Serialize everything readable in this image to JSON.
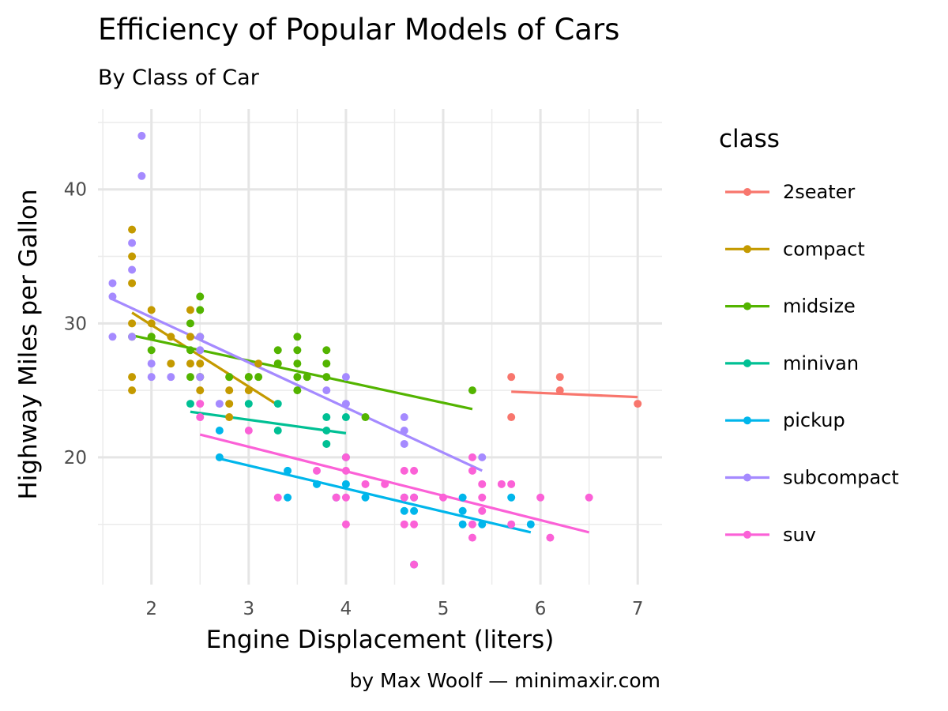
{
  "chart_data": {
    "type": "scatter",
    "title": "Efficiency of Popular Models of Cars",
    "subtitle": "By Class of Car",
    "xlabel": "Engine Displacement (liters)",
    "ylabel": "Highway Miles per Gallon",
    "caption": "by Max Woolf — minimaxir.com",
    "xlim": [
      1.45,
      7.25
    ],
    "ylim": [
      10.5,
      46.0
    ],
    "xticks": [
      2,
      3,
      4,
      5,
      6,
      7
    ],
    "yticks": [
      20,
      30,
      40
    ],
    "grid": true,
    "legend": {
      "title": "class",
      "position": "right"
    },
    "series": [
      {
        "name": "2seater",
        "color": "#F8766D",
        "points": [
          [
            5.7,
            26
          ],
          [
            5.7,
            23
          ],
          [
            6.2,
            26
          ],
          [
            6.2,
            25
          ],
          [
            7.0,
            24
          ]
        ],
        "fit": [
          [
            5.7,
            24.9
          ],
          [
            7.0,
            24.5
          ]
        ]
      },
      {
        "name": "compact",
        "color": "#C49A00",
        "points": [
          [
            1.8,
            37
          ],
          [
            1.8,
            35
          ],
          [
            1.8,
            33
          ],
          [
            1.8,
            30
          ],
          [
            1.8,
            26
          ],
          [
            1.8,
            25
          ],
          [
            2.0,
            31
          ],
          [
            2.0,
            30
          ],
          [
            2.0,
            29
          ],
          [
            2.2,
            29
          ],
          [
            2.2,
            27
          ],
          [
            2.4,
            31
          ],
          [
            2.4,
            29
          ],
          [
            2.4,
            27
          ],
          [
            2.5,
            27
          ],
          [
            2.5,
            26
          ],
          [
            2.5,
            25
          ],
          [
            2.8,
            26
          ],
          [
            2.8,
            25
          ],
          [
            2.8,
            24
          ],
          [
            2.8,
            23
          ],
          [
            3.0,
            26
          ],
          [
            3.0,
            25
          ],
          [
            3.1,
            27
          ],
          [
            3.3,
            27
          ]
        ],
        "fit": [
          [
            1.8,
            30.8
          ],
          [
            3.3,
            23.9
          ]
        ]
      },
      {
        "name": "midsize",
        "color": "#53B400",
        "points": [
          [
            1.8,
            29
          ],
          [
            2.0,
            29
          ],
          [
            2.0,
            28
          ],
          [
            2.4,
            30
          ],
          [
            2.4,
            28
          ],
          [
            2.4,
            26
          ],
          [
            2.5,
            32
          ],
          [
            2.5,
            31
          ],
          [
            2.5,
            29
          ],
          [
            2.5,
            26
          ],
          [
            2.8,
            26
          ],
          [
            3.0,
            26
          ],
          [
            3.1,
            26
          ],
          [
            3.3,
            28
          ],
          [
            3.3,
            27
          ],
          [
            3.5,
            29
          ],
          [
            3.5,
            28
          ],
          [
            3.5,
            27
          ],
          [
            3.5,
            26
          ],
          [
            3.5,
            25
          ],
          [
            3.6,
            26
          ],
          [
            3.8,
            28
          ],
          [
            3.8,
            27
          ],
          [
            3.8,
            26
          ],
          [
            4.2,
            23
          ],
          [
            5.3,
            25
          ]
        ],
        "fit": [
          [
            1.8,
            29.1
          ],
          [
            5.3,
            23.6
          ]
        ]
      },
      {
        "name": "minivan",
        "color": "#00C094",
        "points": [
          [
            2.4,
            24
          ],
          [
            3.0,
            24
          ],
          [
            3.3,
            24
          ],
          [
            3.3,
            22
          ],
          [
            3.8,
            23
          ],
          [
            3.8,
            22
          ],
          [
            3.8,
            21
          ],
          [
            4.0,
            23
          ]
        ],
        "fit": [
          [
            2.4,
            23.4
          ],
          [
            4.0,
            21.8
          ]
        ]
      },
      {
        "name": "pickup",
        "color": "#00B6EB",
        "points": [
          [
            2.7,
            22
          ],
          [
            2.7,
            20
          ],
          [
            3.4,
            19
          ],
          [
            3.4,
            17
          ],
          [
            3.7,
            18
          ],
          [
            3.9,
            17
          ],
          [
            4.0,
            20
          ],
          [
            4.0,
            18
          ],
          [
            4.2,
            17
          ],
          [
            4.6,
            17
          ],
          [
            4.6,
            16
          ],
          [
            4.7,
            17
          ],
          [
            4.7,
            16
          ],
          [
            4.7,
            12
          ],
          [
            5.2,
            17
          ],
          [
            5.2,
            16
          ],
          [
            5.2,
            15
          ],
          [
            5.4,
            15
          ],
          [
            5.7,
            17
          ],
          [
            5.9,
            15
          ]
        ],
        "fit": [
          [
            2.7,
            19.9
          ],
          [
            5.9,
            14.4
          ]
        ]
      },
      {
        "name": "subcompact",
        "color": "#A58AFF",
        "points": [
          [
            1.6,
            33
          ],
          [
            1.6,
            32
          ],
          [
            1.6,
            29
          ],
          [
            1.8,
            36
          ],
          [
            1.8,
            34
          ],
          [
            1.8,
            29
          ],
          [
            1.9,
            44
          ],
          [
            1.9,
            41
          ],
          [
            2.0,
            27
          ],
          [
            2.0,
            26
          ],
          [
            2.2,
            26
          ],
          [
            2.5,
            29
          ],
          [
            2.5,
            28
          ],
          [
            2.5,
            26
          ],
          [
            2.7,
            24
          ],
          [
            3.8,
            25
          ],
          [
            4.0,
            26
          ],
          [
            4.0,
            24
          ],
          [
            4.6,
            23
          ],
          [
            4.6,
            22
          ],
          [
            4.6,
            21
          ],
          [
            5.4,
            20
          ]
        ],
        "fit": [
          [
            1.6,
            31.8
          ],
          [
            5.4,
            19.0
          ]
        ]
      },
      {
        "name": "suv",
        "color": "#FB61D7",
        "points": [
          [
            2.5,
            24
          ],
          [
            2.5,
            23
          ],
          [
            3.0,
            22
          ],
          [
            3.3,
            17
          ],
          [
            3.7,
            19
          ],
          [
            3.9,
            17
          ],
          [
            4.0,
            20
          ],
          [
            4.0,
            19
          ],
          [
            4.0,
            17
          ],
          [
            4.0,
            15
          ],
          [
            4.2,
            18
          ],
          [
            4.4,
            18
          ],
          [
            4.6,
            19
          ],
          [
            4.6,
            17
          ],
          [
            4.6,
            15
          ],
          [
            4.7,
            19
          ],
          [
            4.7,
            17
          ],
          [
            4.7,
            15
          ],
          [
            4.7,
            12
          ],
          [
            5.0,
            17
          ],
          [
            5.3,
            20
          ],
          [
            5.3,
            19
          ],
          [
            5.3,
            15
          ],
          [
            5.3,
            14
          ],
          [
            5.4,
            18
          ],
          [
            5.4,
            17
          ],
          [
            5.4,
            16
          ],
          [
            5.6,
            18
          ],
          [
            5.7,
            18
          ],
          [
            5.7,
            15
          ],
          [
            6.0,
            17
          ],
          [
            6.1,
            14
          ],
          [
            6.5,
            17
          ]
        ],
        "fit": [
          [
            2.5,
            21.7
          ],
          [
            6.5,
            14.4
          ]
        ]
      }
    ]
  }
}
